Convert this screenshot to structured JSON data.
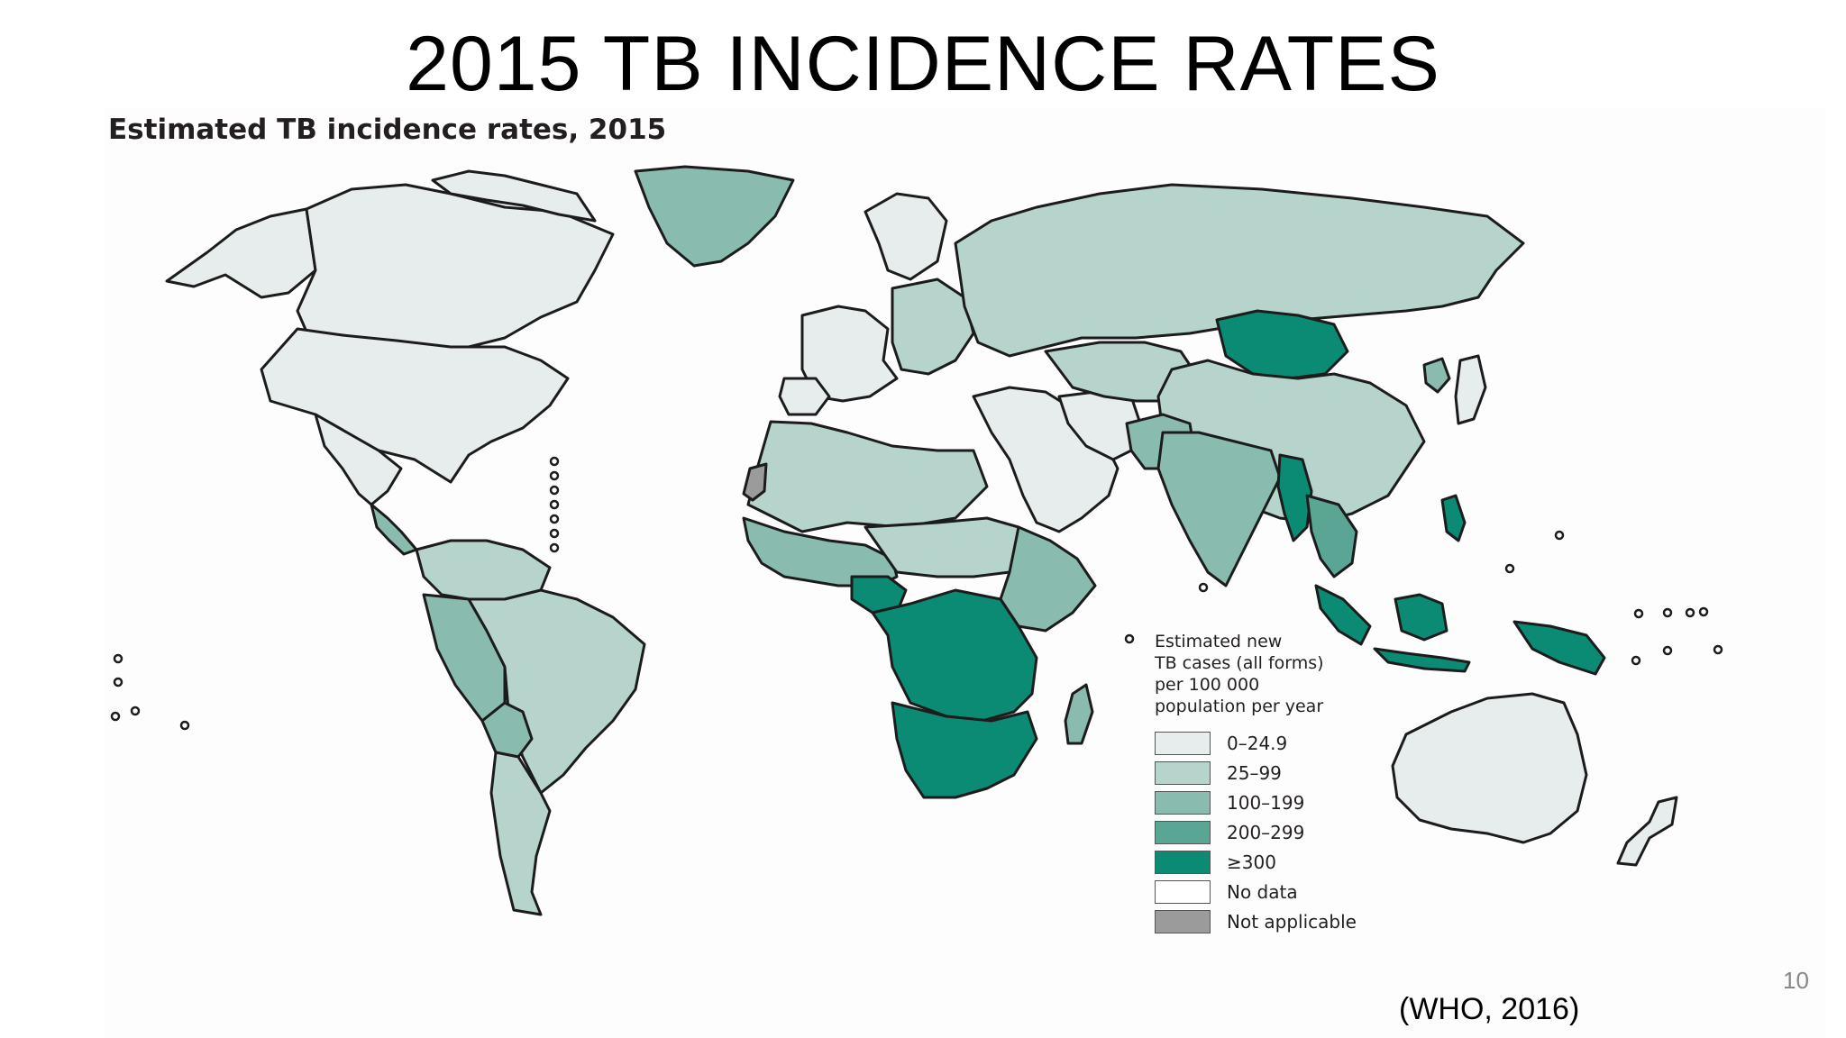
{
  "slide": {
    "title": "2015 TB INCIDENCE RATES",
    "source": "(WHO, 2016)",
    "page_number": "10"
  },
  "map": {
    "title": "Estimated TB incidence rates, 2015",
    "legend": {
      "heading": [
        "Estimated new",
        "TB cases (all forms)",
        "per 100 000",
        "population per year"
      ],
      "items": [
        {
          "label": "0–24.9",
          "color": "#e7edec"
        },
        {
          "label": "25–99",
          "color": "#b7d4cc"
        },
        {
          "label": "100–199",
          "color": "#89bcaf"
        },
        {
          "label": "200–299",
          "color": "#5aa594"
        },
        {
          "label": "≥300",
          "color": "#0b8a74"
        },
        {
          "label": "No data",
          "color": "#ffffff"
        },
        {
          "label": "Not applicable",
          "color": "#9b9b9b"
        }
      ]
    }
  }
}
